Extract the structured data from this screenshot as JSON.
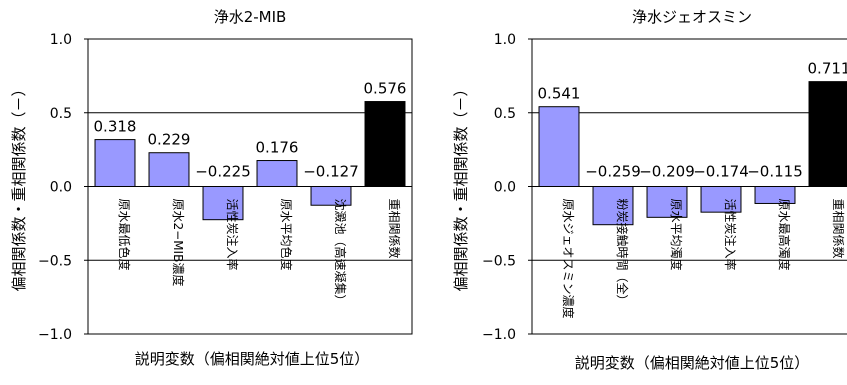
{
  "chart_data": [
    {
      "type": "bar",
      "title": "浄水2-MIB",
      "ylabel": "偏相関係数・重相関係数（－）",
      "xlabel": "説明変数（偏相関絶対値上位5位）",
      "ylim": [
        -1.0,
        1.0
      ],
      "yticks": [
        "1.0",
        "0.5",
        "0.0",
        "-0.5",
        "-1.0"
      ],
      "categories": [
        "原水最低色度",
        "原水2−MIB濃度",
        "活性炭注入率",
        "原水平均色度",
        "沈澱池（高速凝集）",
        "重相関係数"
      ],
      "values": [
        0.318,
        0.229,
        -0.225,
        0.176,
        -0.127,
        0.576
      ],
      "value_labels": [
        "0.318",
        "0.229",
        "−0.225",
        "0.176",
        "−0.127",
        "0.576"
      ],
      "colors": [
        "#9999ff",
        "#9999ff",
        "#9999ff",
        "#9999ff",
        "#9999ff",
        "#000000"
      ],
      "grid": true
    },
    {
      "type": "bar",
      "title": "浄水ジェオスミン",
      "ylabel": "偏相関係数・重相関係数（－）",
      "xlabel": "説明変数（偏相関絶対値上位5位）",
      "ylim": [
        -1.0,
        1.0
      ],
      "yticks": [
        "1.0",
        "0.5",
        "0.0",
        "-0.5",
        "-1.0"
      ],
      "categories": [
        "原水ジェオスミン濃度",
        "粉炭接触時間（全）",
        "原水平均濁度",
        "活性炭注入率",
        "原水最高濁度",
        "重相関係数"
      ],
      "values": [
        0.541,
        -0.259,
        -0.209,
        -0.174,
        -0.115,
        0.711
      ],
      "value_labels": [
        "0.541",
        "−0.259",
        "−0.209",
        "−0.174",
        "−0.115",
        "0.711"
      ],
      "colors": [
        "#9999ff",
        "#9999ff",
        "#9999ff",
        "#9999ff",
        "#9999ff",
        "#000000"
      ],
      "grid": true
    }
  ]
}
